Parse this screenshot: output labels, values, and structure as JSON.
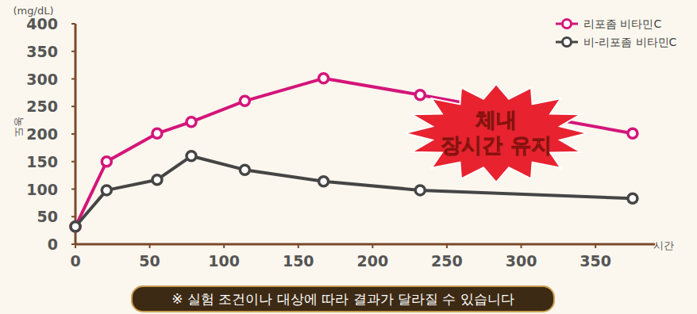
{
  "chart_data": {
    "type": "line",
    "y_unit": "(mg/dL)",
    "y_label": "농도",
    "x_label": "시간",
    "annotation": "체내\n장시간 유지",
    "note": "※ 실험 조건이나 대상에 따라 결과가 달라질 수 있습니다",
    "x": [
      0,
      21,
      55,
      78,
      114,
      167,
      232,
      375
    ],
    "series": [
      {
        "name": "리포좀 비타민C",
        "color": "#d4157a",
        "marker": "circle",
        "values": [
          32,
          150,
          201,
          222,
          260,
          301,
          271,
          201
        ]
      },
      {
        "name": "비-리포좀 비타민C",
        "color": "#454545",
        "marker": "circle",
        "values": [
          32,
          98,
          117,
          160,
          135,
          114,
          98,
          83
        ]
      }
    ],
    "xlim": [
      0,
      390
    ],
    "xticks": [
      0,
      50,
      100,
      150,
      200,
      250,
      300,
      350
    ],
    "ylim": [
      0,
      400
    ],
    "yticks": [
      0,
      50,
      100,
      150,
      200,
      250,
      300,
      350,
      400
    ],
    "grid": false,
    "legend": "upper right"
  }
}
